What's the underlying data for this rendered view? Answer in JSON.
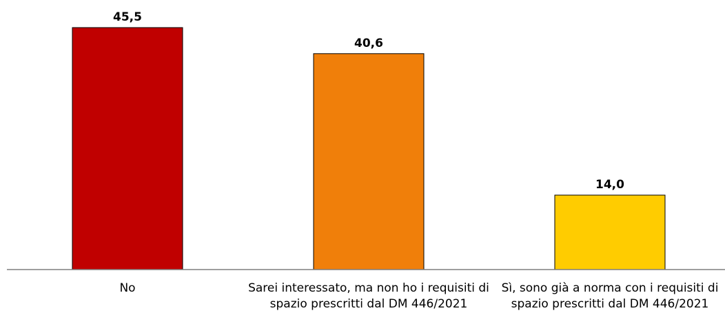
{
  "chart_data": {
    "type": "bar",
    "categories": [
      "No",
      "Sarei interessato, ma non ho i requisiti di spazio prescritti dal DM 446/2021",
      "Sì, sono già a norma con i requisiti di spazio prescritti dal DM 446/2021"
    ],
    "values": [
      45.5,
      40.6,
      14.0
    ],
    "value_labels": [
      "45,5",
      "40,6",
      "14,0"
    ],
    "colors": [
      "#c00000",
      "#f07f0a",
      "#ffcc00"
    ]
  }
}
